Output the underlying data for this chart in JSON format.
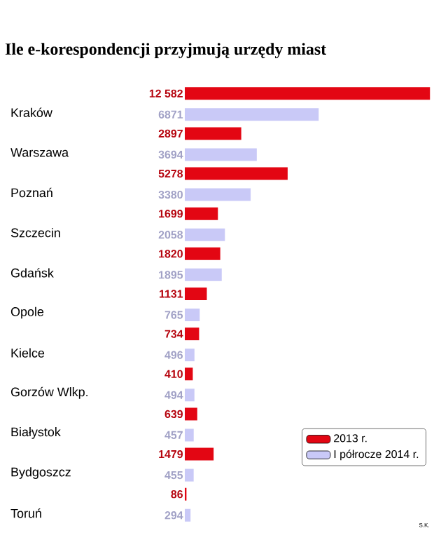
{
  "chart_data": {
    "type": "bar",
    "orientation": "horizontal",
    "title": "Ile e-korespondencji przyjmują urzędy miast",
    "categories": [
      "Kraków",
      "Warszawa",
      "Poznań",
      "Szczecin",
      "Gdańsk",
      "Opole",
      "Kielce",
      "Gorzów Wlkp.",
      "Białystok",
      "Bydgoszcz",
      "Toruń"
    ],
    "series": [
      {
        "name": "2013 r.",
        "color": "#e30613",
        "values": [
          12582,
          2897,
          5278,
          1699,
          1820,
          1131,
          734,
          410,
          639,
          1479,
          86
        ],
        "value_labels": [
          "12 582",
          "2897",
          "5278",
          "1699",
          "1820",
          "1131",
          "734",
          "410",
          "639",
          "1479",
          "86"
        ]
      },
      {
        "name": "I półrocze 2014 r.",
        "color": "#c9c9f7",
        "values": [
          6871,
          3694,
          3380,
          2058,
          1895,
          765,
          496,
          494,
          457,
          455,
          294
        ],
        "value_labels": [
          "6871",
          "3694",
          "3380",
          "2058",
          "1895",
          "765",
          "496",
          "494",
          "457",
          "455",
          "294"
        ]
      }
    ],
    "legend": "bottom right",
    "tick_labels": "y",
    "annotations": [
      "S.K."
    ]
  }
}
